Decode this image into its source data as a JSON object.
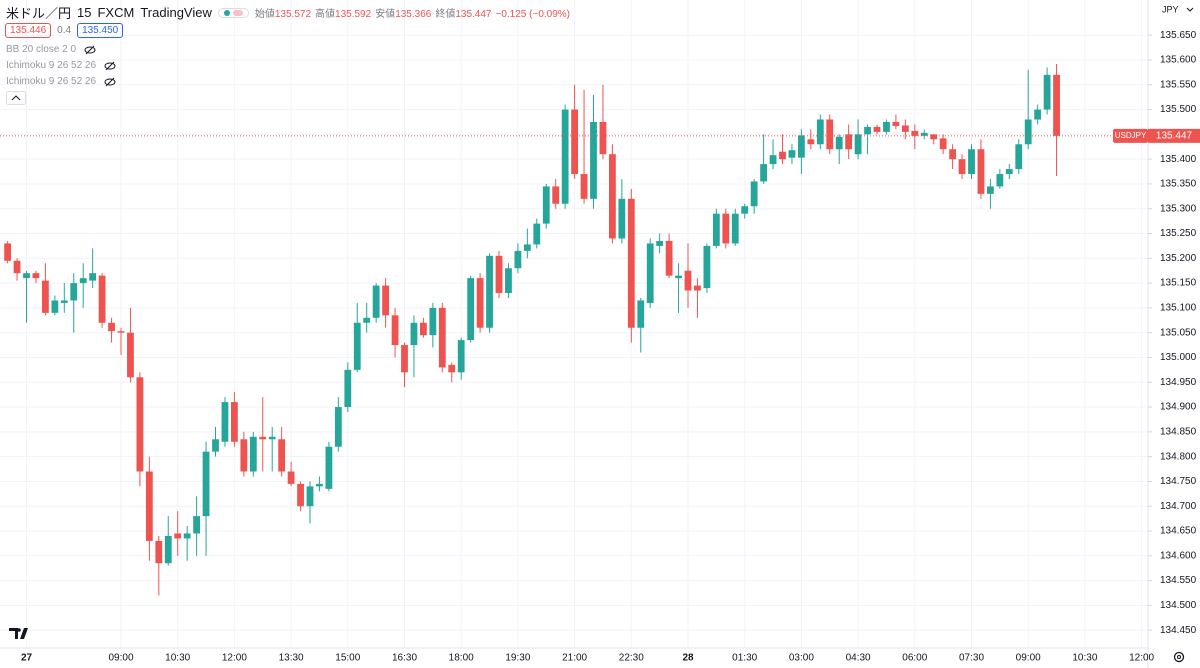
{
  "chart_data": {
    "type": "candlestick",
    "symbol": "米ドル／円",
    "interval": "15",
    "exchange": "FXCM",
    "brand": "TradingView",
    "ohlc_legend": [
      {
        "label": "始値",
        "value": 135.572
      },
      {
        "label": "高値",
        "value": 135.592
      },
      {
        "label": "安値",
        "value": 135.366
      },
      {
        "label": "終値",
        "value": 135.447
      }
    ],
    "change": "−0.125 (−0.09%)",
    "bid": "135.446",
    "spread": "0.4",
    "ask": "135.450",
    "indicators": [
      "BB 20 close 2 0",
      "Ichimoku 9 26 52 26",
      "Ichimoku 9 26 52 26"
    ],
    "currency": "JPY",
    "tag_symbol": "USDJPY",
    "last_price": 135.447,
    "up_color": "#26a69a",
    "down_color": "#ef5350",
    "grid": true,
    "categories": [
      null,
      null,
      "27",
      null,
      null,
      null,
      null,
      null,
      null,
      null,
      null,
      null,
      "09:00",
      null,
      null,
      null,
      null,
      null,
      "10:30",
      null,
      null,
      null,
      null,
      null,
      "12:00",
      null,
      null,
      null,
      null,
      null,
      "13:30",
      null,
      null,
      null,
      null,
      null,
      "15:00",
      null,
      null,
      null,
      null,
      null,
      "16:30",
      null,
      null,
      null,
      null,
      null,
      "18:00",
      null,
      null,
      null,
      null,
      null,
      "19:30",
      null,
      null,
      null,
      null,
      null,
      "21:00",
      null,
      null,
      null,
      null,
      null,
      "22:30",
      null,
      null,
      null,
      null,
      null,
      "28",
      null,
      null,
      null,
      null,
      null,
      "01:30",
      null,
      null,
      null,
      null,
      null,
      "03:00",
      null,
      null,
      null,
      null,
      null,
      "04:30",
      null,
      null,
      null,
      null,
      null,
      "06:00",
      null,
      null,
      null,
      null,
      null,
      "07:30",
      null,
      null,
      null,
      null,
      null,
      "09:00",
      null,
      null,
      null,
      null,
      null,
      "10:30",
      null,
      null,
      null,
      null,
      null,
      "12:00"
    ],
    "open": [
      135.23,
      135.195,
      135.16,
      135.17,
      135.155,
      135.09,
      135.11,
      135.115,
      135.15,
      135.155,
      135.165,
      135.07,
      135.053,
      135.05,
      134.96,
      134.77,
      134.63,
      134.585,
      134.645,
      134.635,
      134.645,
      134.68,
      134.81,
      134.83,
      134.91,
      134.835,
      134.77,
      134.84,
      134.835,
      134.835,
      134.77,
      134.745,
      134.7,
      134.74,
      134.735,
      134.82,
      134.9,
      134.975,
      135.07,
      135.08,
      135.145,
      135.085,
      135.025,
      135.025,
      135.07,
      135.045,
      135.1,
      134.985,
      134.97,
      135.035,
      135.16,
      135.06,
      135.205,
      135.13,
      135.18,
      135.215,
      135.228,
      135.27,
      135.345,
      135.31,
      135.5,
      135.37,
      135.32,
      135.475,
      135.41,
      135.24,
      135.32,
      135.06,
      135.11,
      135.225,
      135.235,
      135.16,
      135.175,
      135.145,
      135.14,
      135.225,
      135.29,
      135.23,
      135.29,
      135.305,
      135.355,
      135.39,
      135.415,
      135.403,
      135.403,
      135.44,
      135.43,
      135.48,
      135.42,
      135.45,
      135.41,
      135.45,
      135.465,
      135.455,
      135.475,
      135.468,
      135.457,
      135.447,
      135.45,
      135.442,
      135.42,
      135.4,
      135.37,
      135.42,
      135.33,
      135.345,
      135.37,
      135.38,
      135.43,
      135.48,
      135.5,
      135.57,
      null,
      null,
      null,
      null,
      null,
      null,
      null,
      null,
      null
    ],
    "high": [
      135.235,
      135.2,
      135.175,
      135.175,
      135.19,
      135.125,
      135.15,
      135.17,
      135.19,
      135.22,
      135.17,
      135.08,
      135.06,
      135.1,
      134.97,
      134.8,
      134.64,
      134.68,
      134.69,
      134.66,
      134.72,
      134.83,
      134.86,
      134.92,
      134.93,
      134.85,
      134.85,
      134.92,
      134.86,
      134.86,
      134.79,
      134.75,
      134.75,
      134.76,
      134.83,
      134.92,
      134.99,
      135.11,
      135.11,
      135.15,
      135.16,
      135.1,
      135.03,
      135.085,
      135.08,
      135.11,
      135.11,
      134.99,
      135.04,
      135.165,
      135.17,
      135.21,
      135.215,
      135.19,
      135.23,
      135.26,
      135.28,
      135.35,
      135.36,
      135.51,
      135.55,
      135.54,
      135.53,
      135.55,
      135.43,
      135.36,
      135.34,
      135.12,
      135.24,
      135.25,
      135.25,
      135.19,
      135.23,
      135.16,
      135.23,
      135.3,
      135.3,
      135.3,
      135.31,
      135.36,
      135.45,
      135.44,
      135.45,
      135.43,
      135.46,
      135.46,
      135.49,
      135.49,
      135.45,
      135.47,
      135.48,
      135.47,
      135.47,
      135.48,
      135.49,
      135.48,
      135.47,
      135.46,
      135.45,
      135.45,
      135.43,
      135.41,
      135.43,
      135.44,
      135.36,
      135.38,
      135.39,
      135.44,
      135.58,
      135.51,
      135.585,
      135.592,
      null,
      null,
      null,
      null,
      null,
      null,
      null,
      null,
      null
    ],
    "low": [
      135.19,
      135.155,
      135.07,
      135.15,
      135.085,
      135.085,
      135.09,
      135.05,
      135.1,
      135.14,
      135.06,
      135.03,
      135.005,
      134.95,
      134.74,
      134.59,
      134.52,
      134.58,
      134.6,
      134.59,
      134.6,
      134.6,
      134.8,
      134.82,
      134.82,
      134.76,
      134.76,
      134.77,
      134.77,
      134.76,
      134.74,
      134.69,
      134.665,
      134.73,
      134.73,
      134.81,
      134.89,
      134.97,
      135.05,
      135.07,
      135.06,
      135.0,
      134.94,
      134.96,
      135.04,
      135.02,
      134.97,
      134.95,
      134.955,
      135.03,
      135.05,
      135.05,
      135.12,
      135.12,
      135.17,
      135.2,
      135.22,
      135.26,
      135.3,
      135.3,
      135.36,
      135.31,
      135.3,
      135.4,
      135.23,
      135.23,
      135.03,
      135.01,
      135.1,
      135.21,
      135.16,
      135.09,
      135.1,
      135.08,
      135.13,
      135.22,
      135.22,
      135.225,
      135.28,
      135.29,
      135.35,
      135.38,
      135.39,
      135.39,
      135.37,
      135.42,
      135.42,
      135.41,
      135.39,
      135.4,
      135.4,
      135.41,
      135.45,
      135.45,
      135.46,
      135.44,
      135.42,
      135.44,
      135.43,
      135.41,
      135.38,
      135.36,
      135.36,
      135.32,
      135.3,
      135.34,
      135.36,
      135.37,
      135.42,
      135.47,
      135.49,
      135.366,
      null,
      null,
      null,
      null,
      null,
      null,
      null,
      null,
      null
    ],
    "close": [
      135.195,
      135.17,
      135.17,
      135.16,
      135.09,
      135.115,
      135.115,
      135.15,
      135.16,
      135.17,
      135.07,
      135.053,
      135.05,
      134.96,
      134.77,
      134.63,
      134.585,
      134.64,
      134.635,
      134.645,
      134.68,
      134.81,
      134.835,
      134.91,
      134.83,
      134.77,
      134.84,
      134.835,
      134.84,
      134.77,
      134.745,
      134.7,
      134.74,
      134.745,
      134.82,
      134.9,
      134.975,
      135.07,
      135.08,
      135.145,
      135.085,
      135.025,
      134.97,
      135.07,
      135.045,
      135.1,
      134.98,
      134.97,
      135.035,
      135.16,
      135.06,
      135.205,
      135.13,
      135.18,
      135.215,
      135.228,
      135.27,
      135.345,
      135.31,
      135.5,
      135.37,
      135.32,
      135.475,
      135.41,
      135.24,
      135.32,
      135.06,
      135.115,
      135.23,
      135.235,
      135.165,
      135.165,
      135.135,
      135.135,
      135.225,
      135.29,
      135.23,
      135.29,
      135.305,
      135.355,
      135.39,
      135.408,
      135.4,
      135.418,
      135.448,
      135.43,
      135.48,
      135.42,
      135.445,
      135.42,
      135.45,
      135.465,
      135.455,
      135.475,
      135.467,
      135.455,
      135.447,
      135.453,
      135.44,
      135.42,
      135.4,
      135.37,
      135.42,
      135.33,
      135.345,
      135.37,
      135.38,
      135.43,
      135.48,
      135.5,
      135.57,
      135.447,
      null,
      null,
      null,
      null,
      null,
      null,
      null,
      null,
      null
    ],
    "ylim": [
      134.414,
      135.721
    ],
    "yticks": [
      {
        "value": 134.45,
        "label": "134.450"
      },
      {
        "value": 134.5,
        "label": "134.500"
      },
      {
        "value": 134.55,
        "label": "134.550"
      },
      {
        "value": 134.6,
        "label": "134.600"
      },
      {
        "value": 134.65,
        "label": "134.650"
      },
      {
        "value": 134.7,
        "label": "134.700"
      },
      {
        "value": 134.75,
        "label": "134.750"
      },
      {
        "value": 134.8,
        "label": "134.800"
      },
      {
        "value": 134.85,
        "label": "134.850"
      },
      {
        "value": 134.9,
        "label": "134.900"
      },
      {
        "value": 134.95,
        "label": "134.950"
      },
      {
        "value": 135,
        "label": "135.000"
      },
      {
        "value": 135.05,
        "label": "135.050"
      },
      {
        "value": 135.1,
        "label": "135.100"
      },
      {
        "value": 135.15,
        "label": "135.150"
      },
      {
        "value": 135.2,
        "label": "135.200"
      },
      {
        "value": 135.25,
        "label": "135.250"
      },
      {
        "value": 135.3,
        "label": "135.300"
      },
      {
        "value": 135.35,
        "label": "135.350"
      },
      {
        "value": 135.4,
        "label": "135.400"
      },
      {
        "value": 135.45,
        "label": "135.450"
      },
      {
        "value": 135.5,
        "label": "135.500"
      },
      {
        "value": 135.55,
        "label": "135.550"
      },
      {
        "value": 135.6,
        "label": "135.600"
      },
      {
        "value": 135.65,
        "label": "135.650"
      }
    ]
  }
}
